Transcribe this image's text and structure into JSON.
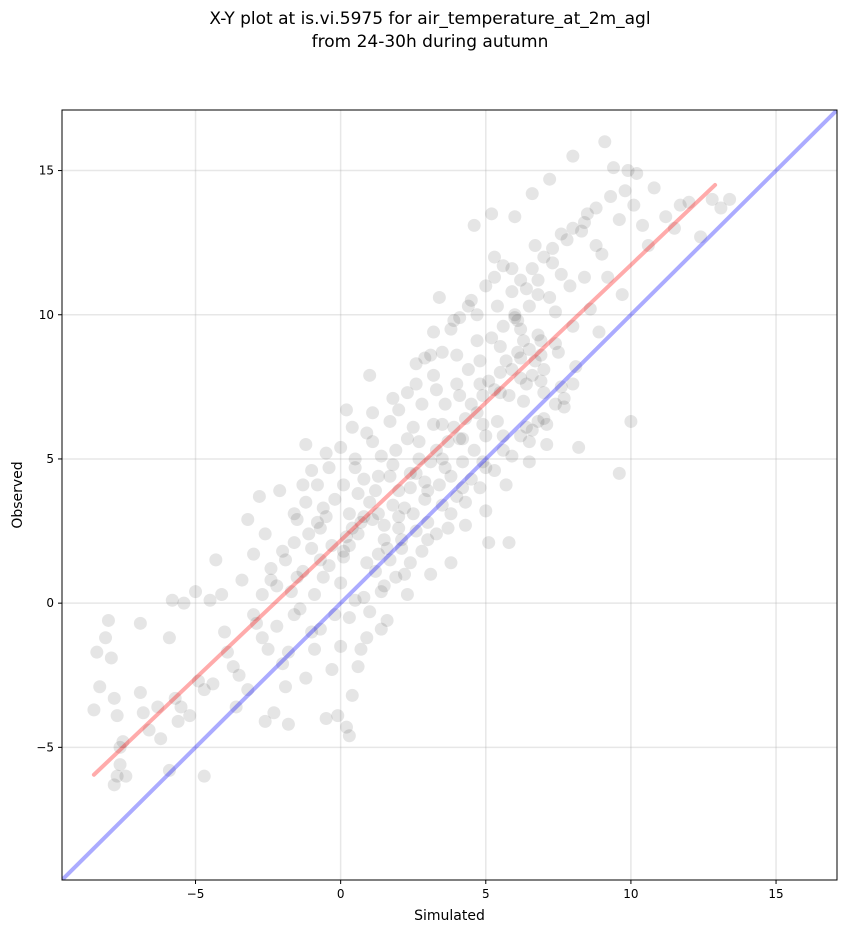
{
  "chart_data": {
    "type": "scatter",
    "title": "X-Y plot at is.vi.5975 for air_temperature_at_2m_agl",
    "subtitle": "from 24-30h during autumn",
    "xlabel": "Simulated",
    "ylabel": "Observed",
    "xlim": [
      -9.6,
      17.1
    ],
    "ylim": [
      -9.6,
      17.1
    ],
    "xticks": [
      -5,
      0,
      5,
      10,
      15
    ],
    "yticks": [
      -5,
      0,
      5,
      10,
      15
    ],
    "xtick_labels": [
      "−5",
      "0",
      "5",
      "10",
      "15"
    ],
    "ytick_labels": [
      "−5",
      "0",
      "5",
      "10",
      "15"
    ],
    "grid": true,
    "point_color": "#000000",
    "point_alpha": 0.1,
    "reference_line": {
      "slope": 1,
      "intercept": 0,
      "color": "#0000ff",
      "alpha": 0.33
    },
    "fit_line": {
      "x": [
        -8.5,
        12.9
      ],
      "y": [
        -5.95,
        14.5
      ],
      "color": "#ff0000",
      "alpha": 0.33
    },
    "points": [
      [
        -8.4,
        -1.7
      ],
      [
        -8.1,
        -1.2
      ],
      [
        -8.0,
        -0.6
      ],
      [
        -7.9,
        -1.9
      ],
      [
        -8.3,
        -2.9
      ],
      [
        -8.5,
        -3.7
      ],
      [
        -7.7,
        -3.9
      ],
      [
        -7.8,
        -3.3
      ],
      [
        -7.5,
        -4.8
      ],
      [
        -7.6,
        -5.0
      ],
      [
        -7.7,
        -6.0
      ],
      [
        -7.6,
        -5.6
      ],
      [
        -7.4,
        -6.0
      ],
      [
        -7.8,
        -6.3
      ],
      [
        -6.9,
        -0.7
      ],
      [
        -6.9,
        -3.1
      ],
      [
        -6.8,
        -3.8
      ],
      [
        -6.6,
        -4.4
      ],
      [
        -6.2,
        -4.7
      ],
      [
        -6.3,
        -3.6
      ],
      [
        -5.9,
        -1.2
      ],
      [
        -5.8,
        0.1
      ],
      [
        -5.4,
        0.0
      ],
      [
        -5.7,
        -3.3
      ],
      [
        -5.5,
        -3.6
      ],
      [
        -5.2,
        -3.9
      ],
      [
        -5.6,
        -4.1
      ],
      [
        -5.9,
        -5.8
      ],
      [
        -4.7,
        -6.0
      ],
      [
        -5.0,
        0.4
      ],
      [
        -4.4,
        -2.8
      ],
      [
        -4.7,
        -3.0
      ],
      [
        -4.9,
        -2.7
      ],
      [
        -4.3,
        1.5
      ],
      [
        -4.1,
        0.3
      ],
      [
        -4.5,
        0.1
      ],
      [
        -4.0,
        -1.0
      ],
      [
        -3.9,
        -1.7
      ],
      [
        -3.7,
        -2.2
      ],
      [
        -3.5,
        -2.5
      ],
      [
        -3.6,
        -3.6
      ],
      [
        -3.2,
        -3.0
      ],
      [
        -3.4,
        0.8
      ],
      [
        -3.0,
        1.7
      ],
      [
        -3.2,
        2.9
      ],
      [
        -2.8,
        3.7
      ],
      [
        -2.6,
        2.4
      ],
      [
        -2.4,
        1.2
      ],
      [
        -2.1,
        3.9
      ],
      [
        -2.7,
        0.3
      ],
      [
        -2.9,
        -0.7
      ],
      [
        -2.5,
        -1.6
      ],
      [
        -2.0,
        -2.1
      ],
      [
        -2.3,
        -3.8
      ],
      [
        -2.6,
        -4.1
      ],
      [
        -1.9,
        -2.9
      ],
      [
        -1.8,
        -1.7
      ],
      [
        -1.6,
        2.1
      ],
      [
        -1.5,
        0.9
      ],
      [
        -1.3,
        4.1
      ],
      [
        -1.2,
        5.5
      ],
      [
        -1.6,
        -0.4
      ],
      [
        -1.8,
        -4.2
      ],
      [
        -1.2,
        -2.6
      ],
      [
        -1.0,
        -1.0
      ],
      [
        -0.9,
        0.3
      ],
      [
        -0.7,
        2.6
      ],
      [
        -0.8,
        4.1
      ],
      [
        -0.5,
        5.2
      ],
      [
        -0.4,
        4.7
      ],
      [
        -0.6,
        3.3
      ],
      [
        -0.7,
        -0.9
      ],
      [
        -0.3,
        -2.3
      ],
      [
        -0.5,
        -4.0
      ],
      [
        -0.1,
        -3.9
      ],
      [
        0.2,
        -4.3
      ],
      [
        0.3,
        -4.6
      ],
      [
        0.4,
        -3.2
      ],
      [
        0.0,
        0.7
      ],
      [
        0.1,
        1.8
      ],
      [
        0.2,
        2.3
      ],
      [
        0.3,
        3.1
      ],
      [
        0.0,
        5.4
      ],
      [
        0.4,
        6.1
      ],
      [
        0.2,
        6.7
      ],
      [
        0.5,
        4.7
      ],
      [
        0.5,
        0.1
      ],
      [
        0.7,
        -1.6
      ],
      [
        0.9,
        -1.2
      ],
      [
        0.7,
        2.8
      ],
      [
        0.9,
        5.9
      ],
      [
        1.0,
        7.9
      ],
      [
        1.1,
        6.6
      ],
      [
        1.2,
        3.9
      ],
      [
        1.3,
        1.7
      ],
      [
        1.4,
        0.4
      ],
      [
        1.4,
        -0.9
      ],
      [
        1.6,
        -0.6
      ],
      [
        1.5,
        2.2
      ],
      [
        1.7,
        4.4
      ],
      [
        1.8,
        7.1
      ],
      [
        1.9,
        5.3
      ],
      [
        2.0,
        3.0
      ],
      [
        2.1,
        2.2
      ],
      [
        2.2,
        1.0
      ],
      [
        2.3,
        0.3
      ],
      [
        2.4,
        4.5
      ],
      [
        2.5,
        6.1
      ],
      [
        2.6,
        7.6
      ],
      [
        2.8,
        6.9
      ],
      [
        2.7,
        5.0
      ],
      [
        2.9,
        3.6
      ],
      [
        3.0,
        2.2
      ],
      [
        3.1,
        1.0
      ],
      [
        3.1,
        8.6
      ],
      [
        3.2,
        9.4
      ],
      [
        3.4,
        10.6
      ],
      [
        3.3,
        7.4
      ],
      [
        3.5,
        6.2
      ],
      [
        3.6,
        4.7
      ],
      [
        3.7,
        2.6
      ],
      [
        3.8,
        1.4
      ],
      [
        3.9,
        9.8
      ],
      [
        4.0,
        8.6
      ],
      [
        4.1,
        7.2
      ],
      [
        4.2,
        5.7
      ],
      [
        4.2,
        4.0
      ],
      [
        4.3,
        2.7
      ],
      [
        4.5,
        10.5
      ],
      [
        4.6,
        13.1
      ],
      [
        4.7,
        9.1
      ],
      [
        4.8,
        7.6
      ],
      [
        4.9,
        6.2
      ],
      [
        4.9,
        4.9
      ],
      [
        5.0,
        3.2
      ],
      [
        5.1,
        2.1
      ],
      [
        5.2,
        13.5
      ],
      [
        5.3,
        12.0
      ],
      [
        5.4,
        10.3
      ],
      [
        5.5,
        8.9
      ],
      [
        5.5,
        7.3
      ],
      [
        5.6,
        5.8
      ],
      [
        5.7,
        4.1
      ],
      [
        5.8,
        2.1
      ],
      [
        5.9,
        11.6
      ],
      [
        6.0,
        13.4
      ],
      [
        6.1,
        9.8
      ],
      [
        6.2,
        8.5
      ],
      [
        6.3,
        7.0
      ],
      [
        6.4,
        6.1
      ],
      [
        6.5,
        4.9
      ],
      [
        6.6,
        14.2
      ],
      [
        6.7,
        12.4
      ],
      [
        6.8,
        10.7
      ],
      [
        6.9,
        9.1
      ],
      [
        6.9,
        7.7
      ],
      [
        7.0,
        6.4
      ],
      [
        7.1,
        5.5
      ],
      [
        7.2,
        14.7
      ],
      [
        7.3,
        11.8
      ],
      [
        7.4,
        10.1
      ],
      [
        7.5,
        8.7
      ],
      [
        7.6,
        7.5
      ],
      [
        7.7,
        6.8
      ],
      [
        7.8,
        12.6
      ],
      [
        7.9,
        11.0
      ],
      [
        8.0,
        15.5
      ],
      [
        8.0,
        9.6
      ],
      [
        8.1,
        8.2
      ],
      [
        8.2,
        5.4
      ],
      [
        8.3,
        12.9
      ],
      [
        8.4,
        11.3
      ],
      [
        8.5,
        13.5
      ],
      [
        8.6,
        10.2
      ],
      [
        8.8,
        13.7
      ],
      [
        8.9,
        9.4
      ],
      [
        9.0,
        12.1
      ],
      [
        9.2,
        11.3
      ],
      [
        9.1,
        16.0
      ],
      [
        9.3,
        14.1
      ],
      [
        9.4,
        15.1
      ],
      [
        9.6,
        13.3
      ],
      [
        9.6,
        4.5
      ],
      [
        9.7,
        10.7
      ],
      [
        9.8,
        14.3
      ],
      [
        9.9,
        15.0
      ],
      [
        10.0,
        6.3
      ],
      [
        10.1,
        13.8
      ],
      [
        10.2,
        14.9
      ],
      [
        10.4,
        13.1
      ],
      [
        10.6,
        12.4
      ],
      [
        10.8,
        14.4
      ],
      [
        11.2,
        13.4
      ],
      [
        11.5,
        13.0
      ],
      [
        11.7,
        13.8
      ],
      [
        12.0,
        13.9
      ],
      [
        12.4,
        12.7
      ],
      [
        12.8,
        14.0
      ],
      [
        13.1,
        13.7
      ],
      [
        13.4,
        14.0
      ],
      [
        0.1,
        1.6
      ],
      [
        0.3,
        2.0
      ],
      [
        0.6,
        2.4
      ],
      [
        0.8,
        3.0
      ],
      [
        1.0,
        3.5
      ],
      [
        1.3,
        3.1
      ],
      [
        1.5,
        2.7
      ],
      [
        1.8,
        3.4
      ],
      [
        2.0,
        3.9
      ],
      [
        2.2,
        3.3
      ],
      [
        2.4,
        4.0
      ],
      [
        2.6,
        4.5
      ],
      [
        2.9,
        4.2
      ],
      [
        3.1,
        4.9
      ],
      [
        3.3,
        5.3
      ],
      [
        3.5,
        5.0
      ],
      [
        3.7,
        5.6
      ],
      [
        3.9,
        6.1
      ],
      [
        4.1,
        5.7
      ],
      [
        4.3,
        6.4
      ],
      [
        4.5,
        6.9
      ],
      [
        4.7,
        6.6
      ],
      [
        4.9,
        7.2
      ],
      [
        5.1,
        7.7
      ],
      [
        5.3,
        7.4
      ],
      [
        5.5,
        8.0
      ],
      [
        5.7,
        8.4
      ],
      [
        5.9,
        8.1
      ],
      [
        6.1,
        8.7
      ],
      [
        6.3,
        9.1
      ],
      [
        6.5,
        8.8
      ],
      [
        6.7,
        8.4
      ],
      [
        6.6,
        7.9
      ],
      [
        6.4,
        7.6
      ],
      [
        6.2,
        9.5
      ],
      [
        6.0,
        9.9
      ],
      [
        6.8,
        9.3
      ],
      [
        6.9,
        8.6
      ],
      [
        7.0,
        8.1
      ],
      [
        6.5,
        10.3
      ],
      [
        -1.3,
        1.1
      ],
      [
        -1.0,
        1.9
      ],
      [
        -0.8,
        2.8
      ],
      [
        -0.4,
        1.3
      ],
      [
        -0.2,
        3.6
      ],
      [
        0.4,
        2.6
      ],
      [
        0.6,
        3.8
      ],
      [
        0.9,
        1.4
      ],
      [
        1.1,
        2.9
      ],
      [
        1.3,
        4.4
      ],
      [
        1.6,
        1.9
      ],
      [
        1.8,
        4.8
      ],
      [
        2.0,
        2.6
      ],
      [
        2.3,
        5.7
      ],
      [
        2.5,
        3.1
      ],
      [
        2.7,
        5.6
      ],
      [
        3.0,
        3.9
      ],
      [
        3.2,
        6.2
      ],
      [
        3.4,
        4.1
      ],
      [
        3.6,
        6.9
      ],
      [
        3.8,
        4.4
      ],
      [
        4.0,
        7.6
      ],
      [
        4.2,
        4.9
      ],
      [
        4.4,
        8.1
      ],
      [
        4.6,
        5.3
      ],
      [
        4.8,
        8.4
      ],
      [
        5.0,
        5.8
      ],
      [
        5.2,
        9.2
      ],
      [
        5.4,
        6.3
      ],
      [
        5.6,
        9.6
      ],
      [
        5.8,
        7.2
      ],
      [
        6.0,
        10.0
      ],
      [
        6.2,
        7.8
      ],
      [
        6.4,
        10.9
      ],
      [
        6.6,
        6.0
      ],
      [
        6.8,
        11.2
      ],
      [
        7.0,
        7.3
      ],
      [
        7.2,
        10.6
      ],
      [
        7.4,
        9.0
      ],
      [
        7.6,
        11.4
      ],
      [
        -2.2,
        0.6
      ],
      [
        -1.9,
        1.5
      ],
      [
        -1.6,
        3.1
      ],
      [
        -1.4,
        -0.2
      ],
      [
        -1.1,
        2.4
      ],
      [
        -0.9,
        -1.6
      ],
      [
        -0.6,
        0.9
      ],
      [
        -0.2,
        -0.4
      ],
      [
        0.0,
        -1.5
      ],
      [
        0.3,
        -0.5
      ],
      [
        0.6,
        -2.2
      ],
      [
        0.8,
        0.2
      ],
      [
        1.0,
        -0.3
      ],
      [
        1.2,
        1.1
      ],
      [
        1.5,
        0.6
      ],
      [
        1.7,
        1.5
      ],
      [
        1.9,
        0.9
      ],
      [
        2.1,
        1.9
      ],
      [
        2.4,
        1.4
      ],
      [
        2.6,
        2.5
      ],
      [
        2.8,
        1.8
      ],
      [
        3.0,
        2.8
      ],
      [
        3.3,
        2.4
      ],
      [
        3.5,
        3.4
      ],
      [
        3.8,
        3.1
      ],
      [
        4.0,
        3.7
      ],
      [
        4.3,
        3.5
      ],
      [
        4.5,
        4.3
      ],
      [
        4.8,
        4.0
      ],
      [
        5.0,
        4.7
      ],
      [
        5.3,
        4.6
      ],
      [
        5.6,
        5.3
      ],
      [
        5.9,
        5.1
      ],
      [
        6.2,
        5.8
      ],
      [
        6.5,
        5.6
      ],
      [
        6.8,
        6.3
      ],
      [
        7.1,
        6.2
      ],
      [
        7.4,
        6.9
      ],
      [
        7.7,
        7.1
      ],
      [
        8.0,
        7.6
      ],
      [
        -3.0,
        -0.4
      ],
      [
        -2.7,
        -1.2
      ],
      [
        -2.4,
        0.8
      ],
      [
        -2.2,
        -0.8
      ],
      [
        -2.0,
        1.8
      ],
      [
        -1.7,
        0.4
      ],
      [
        -1.5,
        2.9
      ],
      [
        -1.2,
        3.5
      ],
      [
        -1.0,
        4.6
      ],
      [
        -0.7,
        1.5
      ],
      [
        -0.5,
        3.0
      ],
      [
        -0.3,
        2.0
      ],
      [
        0.1,
        4.1
      ],
      [
        0.5,
        5.0
      ],
      [
        0.8,
        4.3
      ],
      [
        1.1,
        5.6
      ],
      [
        1.4,
        5.1
      ],
      [
        1.7,
        6.3
      ],
      [
        2.0,
        6.7
      ],
      [
        2.3,
        7.3
      ],
      [
        2.6,
        8.3
      ],
      [
        2.9,
        8.5
      ],
      [
        3.2,
        7.9
      ],
      [
        3.5,
        8.7
      ],
      [
        3.8,
        9.5
      ],
      [
        4.1,
        9.9
      ],
      [
        4.4,
        10.3
      ],
      [
        4.7,
        10.0
      ],
      [
        5.0,
        11.0
      ],
      [
        5.3,
        11.3
      ],
      [
        5.6,
        11.7
      ],
      [
        5.9,
        10.8
      ],
      [
        6.2,
        11.2
      ],
      [
        6.6,
        11.6
      ],
      [
        7.0,
        12.0
      ],
      [
        7.3,
        12.3
      ],
      [
        7.6,
        12.8
      ],
      [
        8.0,
        13.0
      ],
      [
        8.4,
        13.2
      ],
      [
        8.8,
        12.4
      ]
    ]
  }
}
